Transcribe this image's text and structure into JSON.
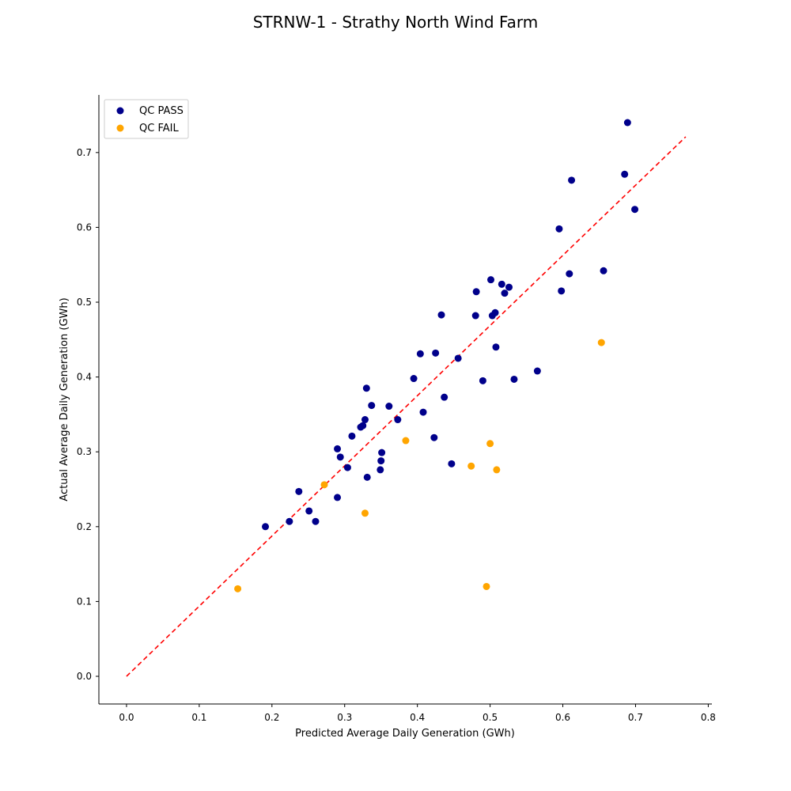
{
  "chart_data": {
    "type": "scatter",
    "title": "STRNW-1 - Strathy North Wind Farm",
    "xlabel": "Predicted Average Daily Generation (GWh)",
    "ylabel": "Actual Average Daily Generation (GWh)",
    "xlim": [
      -0.038,
      0.805
    ],
    "ylim": [
      -0.037,
      0.777
    ],
    "xticks": [
      "0.0",
      "0.1",
      "0.2",
      "0.3",
      "0.4",
      "0.5",
      "0.6",
      "0.7",
      "0.8"
    ],
    "yticks": [
      "0.0",
      "0.1",
      "0.2",
      "0.3",
      "0.4",
      "0.5",
      "0.6",
      "0.7"
    ],
    "grid": false,
    "legend_position": "top-left",
    "reference_line": {
      "style": "dashed",
      "color": "#ff0000",
      "x": [
        0.0,
        0.769
      ],
      "y": [
        0.0,
        0.721
      ]
    },
    "series": [
      {
        "name": "QC PASS",
        "color": "#00008b",
        "points": [
          [
            0.191,
            0.2
          ],
          [
            0.224,
            0.207
          ],
          [
            0.237,
            0.247
          ],
          [
            0.251,
            0.221
          ],
          [
            0.26,
            0.207
          ],
          [
            0.29,
            0.239
          ],
          [
            0.29,
            0.304
          ],
          [
            0.294,
            0.293
          ],
          [
            0.304,
            0.279
          ],
          [
            0.31,
            0.321
          ],
          [
            0.322,
            0.333
          ],
          [
            0.325,
            0.335
          ],
          [
            0.328,
            0.343
          ],
          [
            0.33,
            0.385
          ],
          [
            0.331,
            0.266
          ],
          [
            0.337,
            0.362
          ],
          [
            0.349,
            0.276
          ],
          [
            0.35,
            0.288
          ],
          [
            0.351,
            0.299
          ],
          [
            0.361,
            0.361
          ],
          [
            0.373,
            0.343
          ],
          [
            0.395,
            0.398
          ],
          [
            0.404,
            0.431
          ],
          [
            0.408,
            0.353
          ],
          [
            0.423,
            0.319
          ],
          [
            0.425,
            0.432
          ],
          [
            0.433,
            0.483
          ],
          [
            0.437,
            0.373
          ],
          [
            0.447,
            0.284
          ],
          [
            0.456,
            0.425
          ],
          [
            0.48,
            0.482
          ],
          [
            0.481,
            0.514
          ],
          [
            0.49,
            0.395
          ],
          [
            0.501,
            0.53
          ],
          [
            0.503,
            0.482
          ],
          [
            0.507,
            0.486
          ],
          [
            0.508,
            0.44
          ],
          [
            0.516,
            0.524
          ],
          [
            0.52,
            0.512
          ],
          [
            0.526,
            0.52
          ],
          [
            0.533,
            0.397
          ],
          [
            0.565,
            0.408
          ],
          [
            0.595,
            0.598
          ],
          [
            0.598,
            0.515
          ],
          [
            0.609,
            0.538
          ],
          [
            0.612,
            0.663
          ],
          [
            0.656,
            0.542
          ],
          [
            0.685,
            0.671
          ],
          [
            0.689,
            0.74
          ],
          [
            0.699,
            0.624
          ]
        ]
      },
      {
        "name": "QC FAIL",
        "color": "#ffa500",
        "points": [
          [
            0.153,
            0.117
          ],
          [
            0.272,
            0.256
          ],
          [
            0.328,
            0.218
          ],
          [
            0.384,
            0.315
          ],
          [
            0.474,
            0.281
          ],
          [
            0.495,
            0.12
          ],
          [
            0.5,
            0.311
          ],
          [
            0.509,
            0.276
          ],
          [
            0.653,
            0.446
          ]
        ]
      }
    ]
  }
}
